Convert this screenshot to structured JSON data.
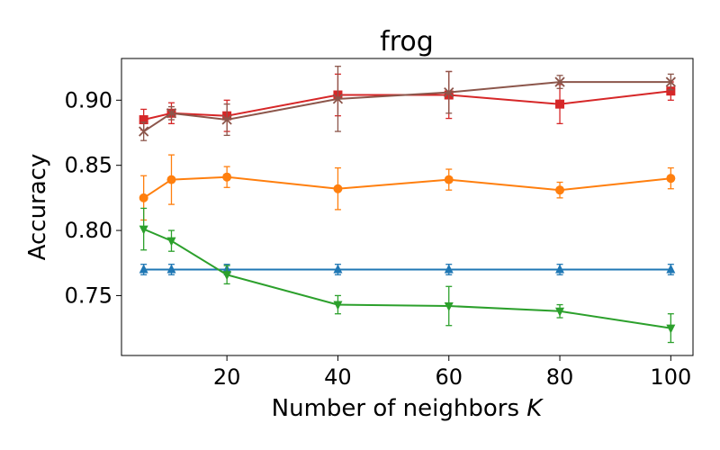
{
  "chart_data": {
    "type": "line",
    "title": "frog",
    "xlabel": "Number of neighbors",
    "xlabel_var": "K",
    "ylabel": "Accuracy",
    "xlim": [
      1,
      104
    ],
    "ylim": [
      0.704,
      0.932
    ],
    "xticks": [
      20,
      40,
      60,
      80,
      100
    ],
    "yticks": [
      0.75,
      0.8,
      0.85,
      0.9
    ],
    "ytick_labels": [
      "0.75",
      "0.80",
      "0.85",
      "0.90"
    ],
    "grid": false,
    "legend": "none",
    "x": [
      5,
      10,
      20,
      40,
      60,
      80,
      100
    ],
    "series": [
      {
        "color": "#1f77b4",
        "marker": "triangle-up",
        "y": [
          0.77,
          0.77,
          0.77,
          0.77,
          0.77,
          0.77,
          0.77
        ],
        "err": [
          0.004,
          0.004,
          0.004,
          0.004,
          0.004,
          0.004,
          0.004
        ]
      },
      {
        "color": "#ff7f0e",
        "marker": "circle",
        "y": [
          0.825,
          0.839,
          0.841,
          0.832,
          0.839,
          0.831,
          0.84
        ],
        "err": [
          0.017,
          0.019,
          0.008,
          0.016,
          0.008,
          0.006,
          0.008
        ]
      },
      {
        "color": "#2ca02c",
        "marker": "triangle-down",
        "y": [
          0.801,
          0.792,
          0.766,
          0.743,
          0.742,
          0.738,
          0.725
        ],
        "err": [
          0.016,
          0.008,
          0.007,
          0.007,
          0.015,
          0.005,
          0.011
        ]
      },
      {
        "color": "#d62728",
        "marker": "square",
        "y": [
          0.885,
          0.89,
          0.888,
          0.904,
          0.904,
          0.897,
          0.907
        ],
        "err": [
          0.008,
          0.008,
          0.012,
          0.016,
          0.018,
          0.015,
          0.007
        ]
      },
      {
        "color": "#8c564b",
        "marker": "x",
        "y": [
          0.876,
          0.89,
          0.885,
          0.901,
          0.906,
          0.914,
          0.914
        ],
        "err": [
          0.007,
          0.005,
          0.012,
          0.025,
          0.016,
          0.005,
          0.006
        ]
      }
    ]
  }
}
